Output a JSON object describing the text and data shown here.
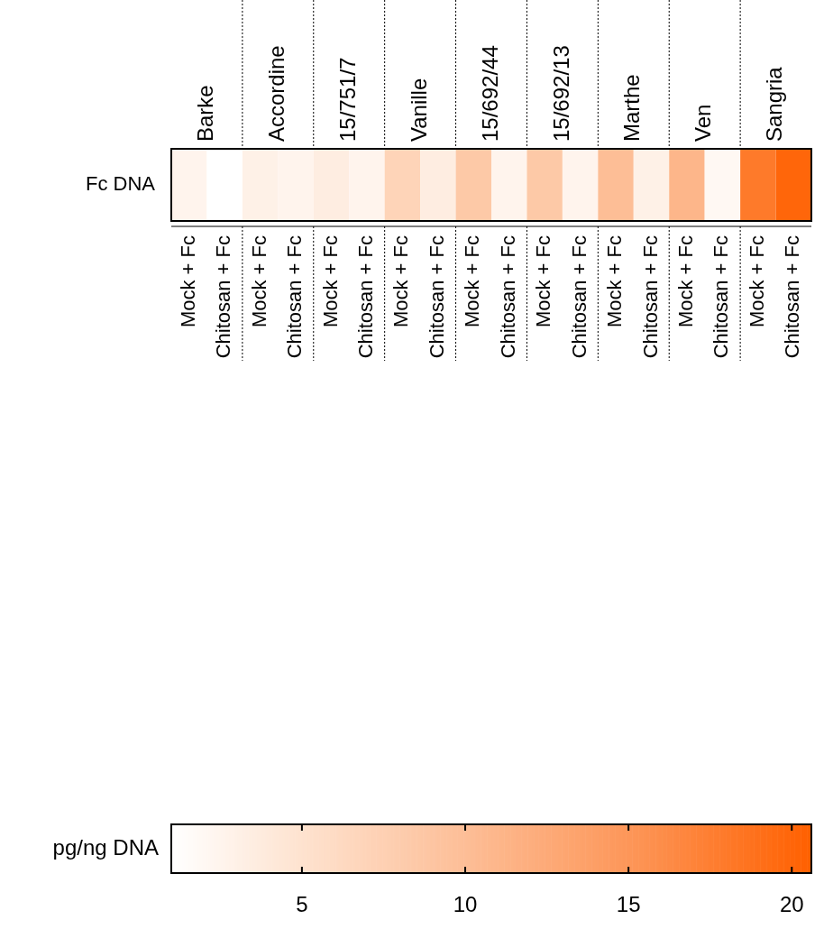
{
  "chart_data": {
    "type": "heatmap",
    "clabel": "pg/ng DNA",
    "categories": [
      "Mock + Fc",
      "Chitosan + Fc",
      "Mock + Fc",
      "Chitosan + Fc",
      "Mock + Fc",
      "Chitosan + Fc",
      "Mock + Fc",
      "Chitosan + Fc",
      "Mock + Fc",
      "Chitosan + Fc",
      "Mock + Fc",
      "Chitosan + Fc",
      "Mock + Fc",
      "Chitosan + Fc",
      "Mock + Fc",
      "Chitosan + Fc",
      "Mock + Fc",
      "Chitosan + Fc"
    ],
    "y_categories": [
      "Fc DNA"
    ],
    "cells": [
      [
        2.5,
        1,
        3,
        2.5,
        3.5,
        2.5,
        7,
        3.5,
        8.5,
        2.5,
        8.5,
        2.5,
        10,
        3,
        11,
        2,
        18,
        20
      ]
    ],
    "annotations": [
      "Barke",
      "Accordine",
      "15/751/7",
      "Vanille",
      "15/692/44",
      "15/692/13",
      "Marthe",
      "Ven",
      "Sangria"
    ],
    "clim": [
      1,
      20.6
    ],
    "cticks": [
      5,
      10,
      15,
      20
    ]
  }
}
